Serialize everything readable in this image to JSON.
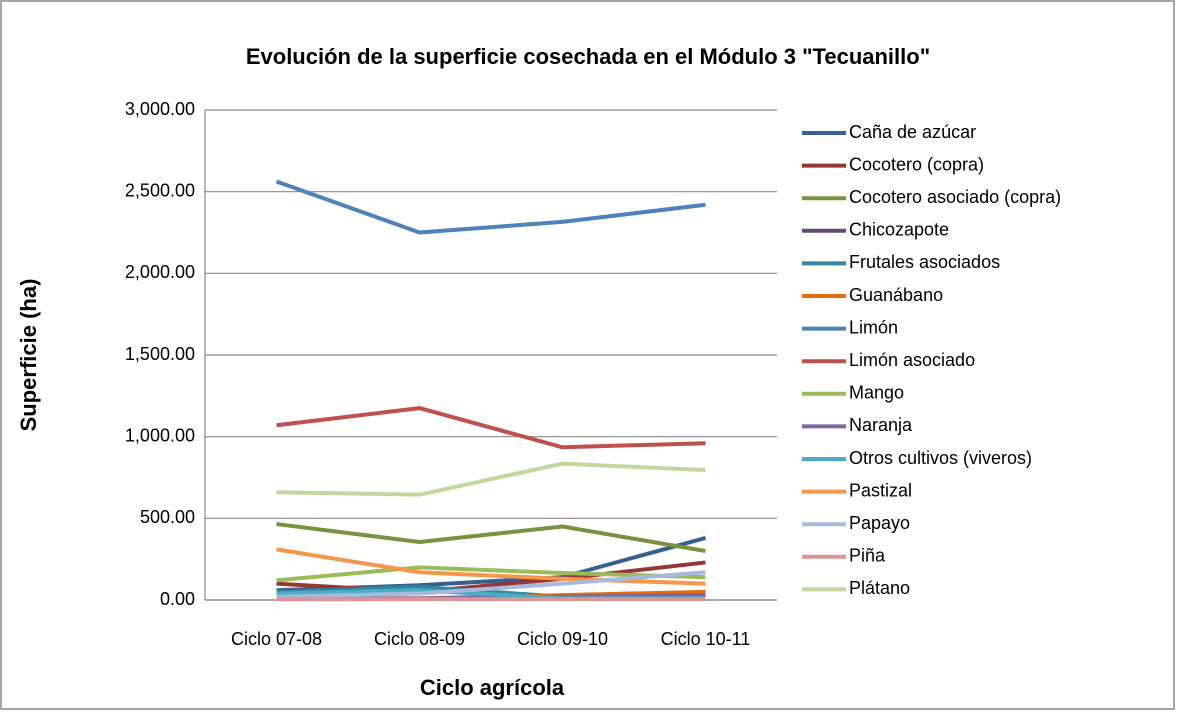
{
  "chart_data": {
    "type": "line",
    "title": "Evolución de la superficie cosechada en el  Módulo 3 \"Tecuanillo\"",
    "x_label": "Ciclo agrícola",
    "y_label": "Superficie (ha)",
    "categories": [
      "Ciclo 07-08",
      "Ciclo 08-09",
      "Ciclo 09-10",
      "Ciclo 10-11"
    ],
    "ylim": [
      0,
      3000
    ],
    "yticks": [
      {
        "value": 0,
        "label": "0.00"
      },
      {
        "value": 500,
        "label": "500.00"
      },
      {
        "value": 1000,
        "label": "1,000.00"
      },
      {
        "value": 1500,
        "label": "1,500.00"
      },
      {
        "value": 2000,
        "label": "2,000.00"
      },
      {
        "value": 2500,
        "label": "2,500.00"
      },
      {
        "value": 3000,
        "label": "3,000.00"
      }
    ],
    "grid": true,
    "legend": "right",
    "series": [
      {
        "name": "Caña de azúcar",
        "color": "#376092",
        "values": [
          60,
          90,
          140,
          380
        ]
      },
      {
        "name": "Cocotero (copra)",
        "color": "#953735",
        "values": [
          100,
          50,
          130,
          230
        ]
      },
      {
        "name": "Cocotero asociado (copra)",
        "color": "#77933c",
        "values": [
          465,
          355,
          450,
          300
        ]
      },
      {
        "name": "Chicozapote",
        "color": "#604a7b",
        "values": [
          5,
          5,
          10,
          40
        ]
      },
      {
        "name": "Frutales asociados",
        "color": "#31859c",
        "values": [
          50,
          80,
          20,
          30
        ]
      },
      {
        "name": "Guanábano",
        "color": "#e46c0a",
        "values": [
          10,
          10,
          30,
          50
        ]
      },
      {
        "name": "Limón",
        "color": "#4f81bd",
        "values": [
          2562,
          2250,
          2315,
          2420
        ]
      },
      {
        "name": "Limón asociado",
        "color": "#c0504d",
        "values": [
          1070,
          1175,
          935,
          960
        ]
      },
      {
        "name": "Mango",
        "color": "#9bbb59",
        "values": [
          120,
          200,
          165,
          140
        ]
      },
      {
        "name": "Naranja",
        "color": "#8064a2",
        "values": [
          10,
          10,
          20,
          30
        ]
      },
      {
        "name": "Otros cultivos (viveros)",
        "color": "#4bacc6",
        "values": [
          40,
          60,
          10,
          10
        ]
      },
      {
        "name": "Pastizal",
        "color": "#f79646",
        "values": [
          310,
          170,
          130,
          100
        ]
      },
      {
        "name": "Papayo",
        "color": "#a6b9dc",
        "values": [
          20,
          40,
          100,
          170
        ]
      },
      {
        "name": "Piña",
        "color": "#d99694",
        "values": [
          5,
          5,
          5,
          5
        ]
      },
      {
        "name": "Plátano",
        "color": "#c3d69b",
        "values": [
          660,
          645,
          835,
          795
        ]
      }
    ]
  }
}
